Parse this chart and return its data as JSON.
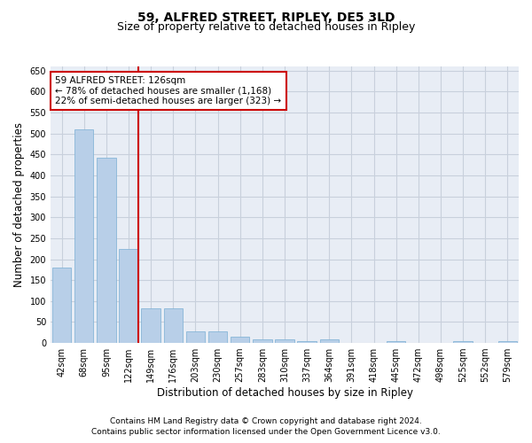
{
  "title": "59, ALFRED STREET, RIPLEY, DE5 3LD",
  "subtitle": "Size of property relative to detached houses in Ripley",
  "xlabel": "Distribution of detached houses by size in Ripley",
  "ylabel": "Number of detached properties",
  "footnote1": "Contains HM Land Registry data © Crown copyright and database right 2024.",
  "footnote2": "Contains public sector information licensed under the Open Government Licence v3.0.",
  "categories": [
    "42sqm",
    "68sqm",
    "95sqm",
    "122sqm",
    "149sqm",
    "176sqm",
    "203sqm",
    "230sqm",
    "257sqm",
    "283sqm",
    "310sqm",
    "337sqm",
    "364sqm",
    "391sqm",
    "418sqm",
    "445sqm",
    "472sqm",
    "498sqm",
    "525sqm",
    "552sqm",
    "579sqm"
  ],
  "values": [
    180,
    510,
    443,
    225,
    83,
    83,
    28,
    28,
    15,
    8,
    8,
    5,
    8,
    0,
    0,
    5,
    0,
    0,
    5,
    0,
    5
  ],
  "bar_color": "#b8cfe8",
  "bar_edgecolor": "#7aafd4",
  "vline_x_index": 3,
  "vline_color": "#cc0000",
  "annotation_line1": "59 ALFRED STREET: 126sqm",
  "annotation_line2": "← 78% of detached houses are smaller (1,168)",
  "annotation_line3": "22% of semi-detached houses are larger (323) →",
  "annotation_box_color": "#ffffff",
  "annotation_box_edgecolor": "#cc0000",
  "ylim": [
    0,
    660
  ],
  "yticks": [
    0,
    50,
    100,
    150,
    200,
    250,
    300,
    350,
    400,
    450,
    500,
    550,
    600,
    650
  ],
  "grid_color": "#c8d0dc",
  "bg_color": "#e8edf5",
  "title_fontsize": 10,
  "subtitle_fontsize": 9,
  "label_fontsize": 8.5,
  "tick_fontsize": 7,
  "footnote_fontsize": 6.5
}
